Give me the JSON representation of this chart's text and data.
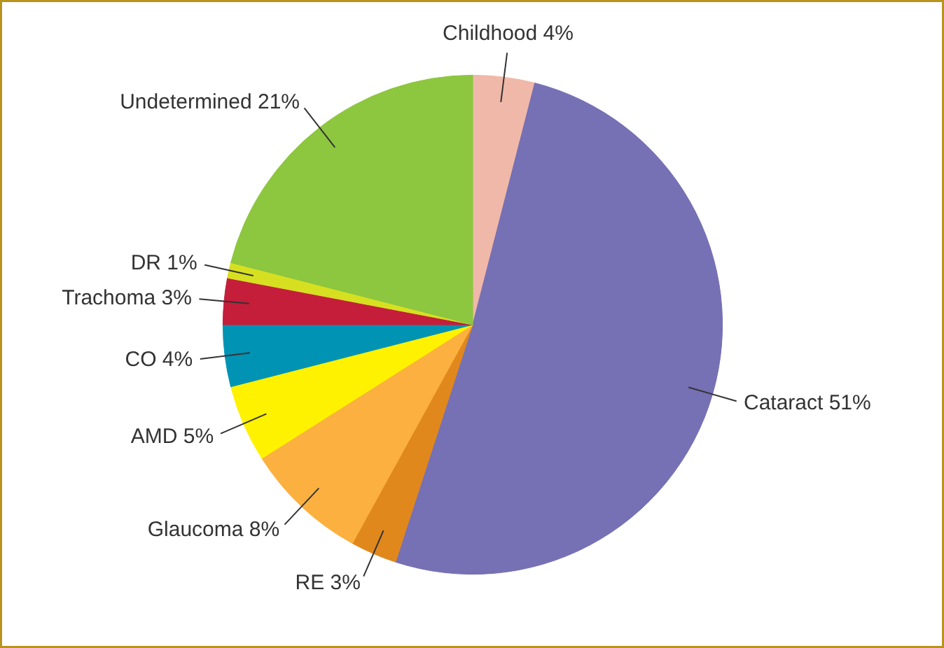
{
  "chart_data": {
    "type": "pie",
    "categories": [
      "Childhood",
      "Cataract",
      "RE",
      "Glaucoma",
      "AMD",
      "CO",
      "Trachoma",
      "DR",
      "Undetermined"
    ],
    "values": [
      4,
      51,
      3,
      8,
      5,
      4,
      3,
      1,
      21
    ],
    "value_labels": [
      "4%",
      "51%",
      "3%",
      "8%",
      "5%",
      "4%",
      "3%",
      "1%",
      "21%"
    ],
    "colors": [
      "#f0b8a8",
      "#7670b4",
      "#e0881c",
      "#fbb040",
      "#fff200",
      "#0093b4",
      "#c41e3a",
      "#d6e021",
      "#8dc63f"
    ]
  }
}
